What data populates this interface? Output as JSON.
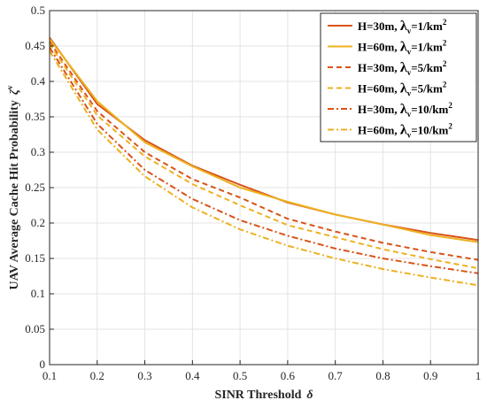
{
  "chart_data": {
    "type": "line",
    "title": "",
    "xlabel": {
      "main": "SINR Threshold",
      "symbol": "δ"
    },
    "ylabel": {
      "main": "UAV Average Cache Hit Probability",
      "symbol": "ζ",
      "superscript": "v"
    },
    "xlim": [
      0.1,
      1
    ],
    "ylim": [
      0,
      0.5
    ],
    "x_ticks": [
      "0.1",
      "0.2",
      "0.3",
      "0.4",
      "0.5",
      "0.6",
      "0.7",
      "0.8",
      "0.9",
      "1"
    ],
    "y_ticks": [
      "0",
      "0.05",
      "0.1",
      "0.15",
      "0.2",
      "0.25",
      "0.3",
      "0.35",
      "0.4",
      "0.45",
      "0.5"
    ],
    "grid": true,
    "legend_position": "top-right",
    "x": [
      0.1,
      0.2,
      0.3,
      0.4,
      0.5,
      0.6,
      0.7,
      0.8,
      0.9,
      1.0
    ],
    "series": [
      {
        "name": "H=30m, λv=1/km2",
        "legend": {
          "h": "H=30m, ",
          "lam": "λ",
          "sub": "v",
          "rest": "=1/km",
          "sup": "2"
        },
        "color": "#d95319",
        "dash": "solid",
        "values": [
          0.462,
          0.368,
          0.317,
          0.281,
          0.254,
          0.229,
          0.212,
          0.198,
          0.186,
          0.176
        ]
      },
      {
        "name": "H=60m, λv=1/km2",
        "legend": {
          "h": "H=60m, ",
          "lam": "λ",
          "sub": "v",
          "rest": "=1/km",
          "sup": "2"
        },
        "color": "#edb120",
        "dash": "solid",
        "values": [
          0.46,
          0.372,
          0.314,
          0.28,
          0.25,
          0.23,
          0.212,
          0.198,
          0.183,
          0.173
        ]
      },
      {
        "name": "H=30m, λv=5/km2",
        "legend": {
          "h": "H=30m, ",
          "lam": "λ",
          "sub": "v",
          "rest": "=5/km",
          "sup": "2"
        },
        "color": "#d95319",
        "dash": "dashed",
        "values": [
          0.456,
          0.358,
          0.3,
          0.262,
          0.236,
          0.206,
          0.188,
          0.172,
          0.159,
          0.148
        ]
      },
      {
        "name": "H=60m, λv=5/km2",
        "legend": {
          "h": "H=60m, ",
          "lam": "λ",
          "sub": "v",
          "rest": "=5/km",
          "sup": "2"
        },
        "color": "#edb120",
        "dash": "dashed",
        "values": [
          0.453,
          0.352,
          0.294,
          0.255,
          0.225,
          0.197,
          0.18,
          0.163,
          0.149,
          0.136
        ]
      },
      {
        "name": "H=30m, λv=10/km2",
        "legend": {
          "h": "H=30m, ",
          "lam": "λ",
          "sub": "v",
          "rest": "=10/km",
          "sup": "2"
        },
        "color": "#d95319",
        "dash": "dashdot",
        "values": [
          0.448,
          0.34,
          0.275,
          0.234,
          0.204,
          0.182,
          0.164,
          0.15,
          0.139,
          0.129
        ]
      },
      {
        "name": "H=60m, λv=10/km2",
        "legend": {
          "h": "H=60m, ",
          "lam": "λ",
          "sub": "v",
          "rest": "=10/km",
          "sup": "2"
        },
        "color": "#edb120",
        "dash": "dashdot",
        "values": [
          0.443,
          0.332,
          0.266,
          0.222,
          0.191,
          0.168,
          0.15,
          0.135,
          0.123,
          0.112
        ]
      }
    ]
  }
}
